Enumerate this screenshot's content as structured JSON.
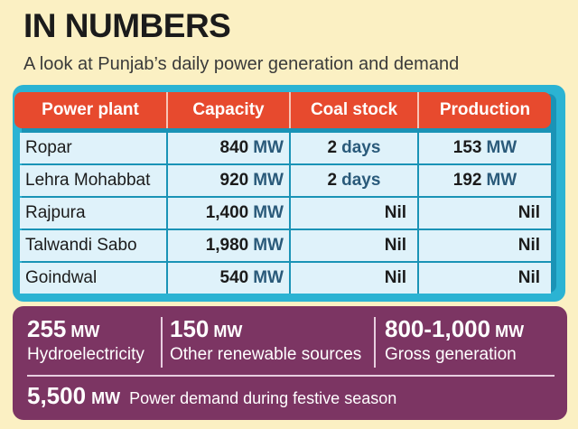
{
  "header": {
    "title": "IN NUMBERS",
    "subtitle": "A look at Punjab’s daily power generation and demand"
  },
  "table": {
    "columns": [
      "Power plant",
      "Capacity",
      "Coal stock",
      "Production"
    ],
    "rows": [
      {
        "plant": "Ropar",
        "capacity": "840",
        "capacity_unit": "MW",
        "coal_stock": "2",
        "coal_unit": "days",
        "production": "153",
        "production_unit": "MW"
      },
      {
        "plant": "Lehra Mohabbat",
        "capacity": "920",
        "capacity_unit": "MW",
        "coal_stock": "2",
        "coal_unit": "days",
        "production": "192",
        "production_unit": "MW"
      },
      {
        "plant": "Rajpura",
        "capacity": "1,400",
        "capacity_unit": "MW",
        "coal_stock": "Nil",
        "production": "Nil"
      },
      {
        "plant": "Talwandi Sabo",
        "capacity": "1,980",
        "capacity_unit": "MW",
        "coal_stock": "Nil",
        "production": "Nil"
      },
      {
        "plant": "Goindwal",
        "capacity": "540",
        "capacity_unit": "MW",
        "coal_stock": "Nil",
        "production": "Nil"
      }
    ]
  },
  "stats": {
    "hydro": {
      "value": "255",
      "unit": "MW",
      "label": "Hydroelectricity"
    },
    "renewable": {
      "value": "150",
      "unit": "MW",
      "label": "Other renewable sources"
    },
    "gross": {
      "value": "800-1,000",
      "unit": "MW",
      "label": "Gross generation"
    },
    "demand": {
      "value": "5,500",
      "unit": "MW",
      "label": "Power demand during festive season"
    }
  },
  "colors": {
    "background": "#fbf0c3",
    "table_frame": "#2bb3d3",
    "header_row": "#e74a2e",
    "stats_panel": "#7c3563"
  }
}
